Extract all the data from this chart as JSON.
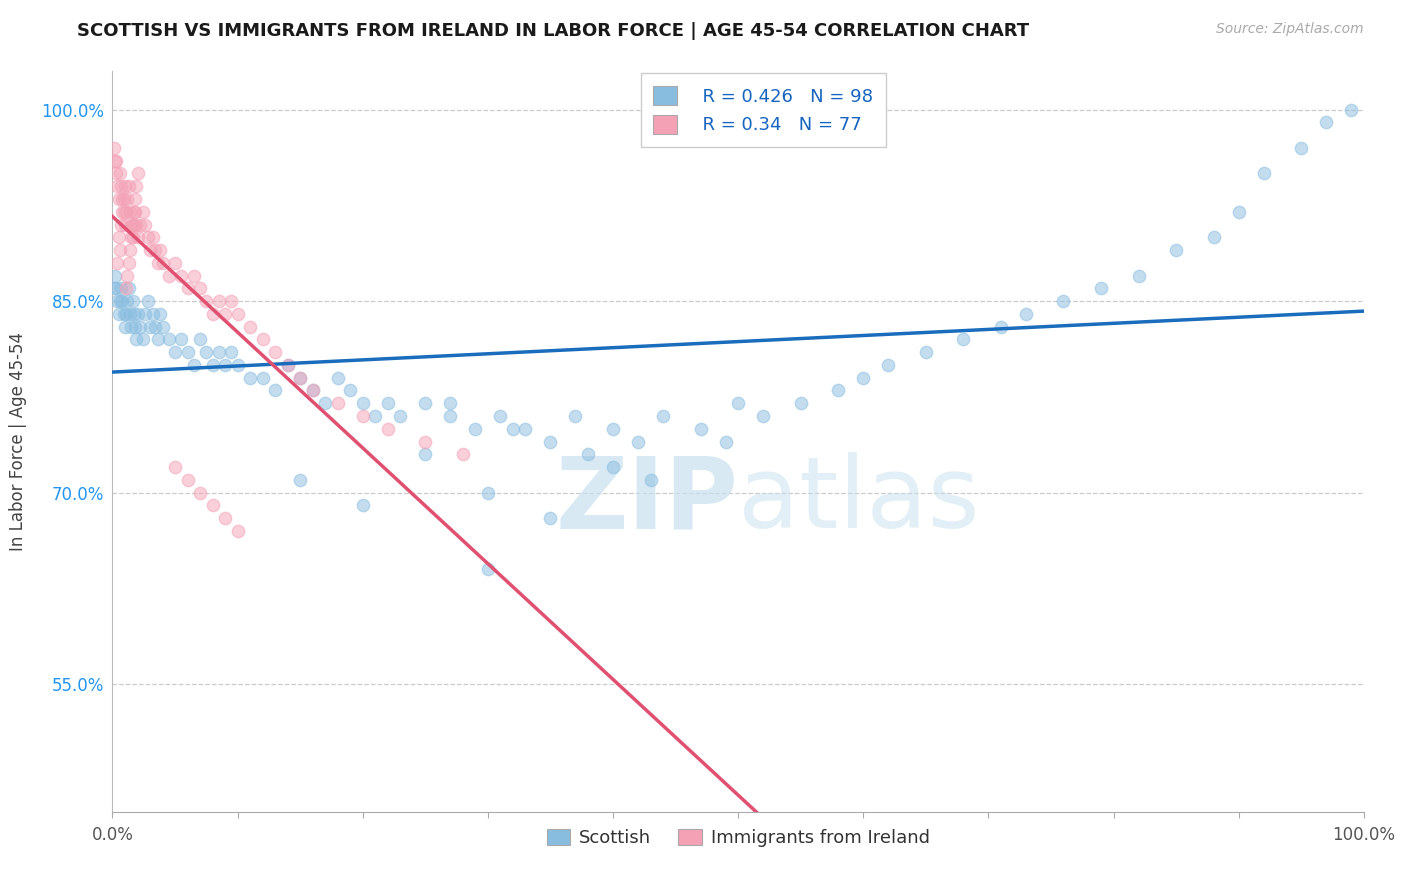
{
  "title": "SCOTTISH VS IMMIGRANTS FROM IRELAND IN LABOR FORCE | AGE 45-54 CORRELATION CHART",
  "source_text": "Source: ZipAtlas.com",
  "ylabel": "In Labor Force | Age 45-54",
  "watermark_zip": "ZIP",
  "watermark_atlas": "atlas",
  "blue_R": 0.426,
  "blue_N": 98,
  "pink_R": 0.34,
  "pink_N": 77,
  "blue_color": "#89bde0",
  "pink_color": "#f4a0b5",
  "blue_line_color": "#1a6dbd",
  "pink_line_color": "#e05070",
  "legend_blue_label": "Scottish",
  "legend_pink_label": "Immigrants from Ireland",
  "background_color": "#ffffff",
  "grid_color": "#cccccc",
  "title_color": "#1a1a1a",
  "scatter_alpha": 0.5,
  "scatter_size": 80,
  "ytick_color": "#2196F3",
  "xmin": 0.0,
  "xmax": 1.0,
  "ymin": 0.45,
  "ymax": 1.03,
  "yticks": [
    0.55,
    0.7,
    0.85,
    1.0
  ],
  "ytick_labels": [
    "55.0%",
    "70.0%",
    "85.0%",
    "100.0%"
  ],
  "blue_x": [
    0.001,
    0.002,
    0.003,
    0.004,
    0.005,
    0.006,
    0.007,
    0.008,
    0.009,
    0.01,
    0.011,
    0.012,
    0.013,
    0.014,
    0.015,
    0.016,
    0.017,
    0.018,
    0.019,
    0.02,
    0.022,
    0.024,
    0.026,
    0.028,
    0.03,
    0.032,
    0.034,
    0.036,
    0.038,
    0.04,
    0.045,
    0.05,
    0.055,
    0.06,
    0.065,
    0.07,
    0.075,
    0.08,
    0.085,
    0.09,
    0.095,
    0.1,
    0.11,
    0.12,
    0.13,
    0.14,
    0.15,
    0.16,
    0.17,
    0.18,
    0.19,
    0.2,
    0.21,
    0.22,
    0.23,
    0.25,
    0.27,
    0.29,
    0.31,
    0.33,
    0.35,
    0.37,
    0.4,
    0.42,
    0.44,
    0.47,
    0.49,
    0.52,
    0.55,
    0.58,
    0.6,
    0.62,
    0.65,
    0.68,
    0.71,
    0.73,
    0.76,
    0.79,
    0.82,
    0.85,
    0.88,
    0.9,
    0.92,
    0.95,
    0.97,
    0.99,
    0.15,
    0.2,
    0.25,
    0.3,
    0.35,
    0.4,
    0.27,
    0.32,
    0.38,
    0.43,
    0.5,
    0.3
  ],
  "blue_y": [
    0.86,
    0.87,
    0.86,
    0.85,
    0.84,
    0.85,
    0.86,
    0.85,
    0.84,
    0.83,
    0.84,
    0.85,
    0.86,
    0.84,
    0.83,
    0.85,
    0.84,
    0.83,
    0.82,
    0.84,
    0.83,
    0.82,
    0.84,
    0.85,
    0.83,
    0.84,
    0.83,
    0.82,
    0.84,
    0.83,
    0.82,
    0.81,
    0.82,
    0.81,
    0.8,
    0.82,
    0.81,
    0.8,
    0.81,
    0.8,
    0.81,
    0.8,
    0.79,
    0.79,
    0.78,
    0.8,
    0.79,
    0.78,
    0.77,
    0.79,
    0.78,
    0.77,
    0.76,
    0.77,
    0.76,
    0.77,
    0.76,
    0.75,
    0.76,
    0.75,
    0.74,
    0.76,
    0.75,
    0.74,
    0.76,
    0.75,
    0.74,
    0.76,
    0.77,
    0.78,
    0.79,
    0.8,
    0.81,
    0.82,
    0.83,
    0.84,
    0.85,
    0.86,
    0.87,
    0.89,
    0.9,
    0.92,
    0.95,
    0.97,
    0.99,
    1.0,
    0.71,
    0.69,
    0.73,
    0.7,
    0.68,
    0.72,
    0.77,
    0.75,
    0.73,
    0.71,
    0.77,
    0.64
  ],
  "pink_x": [
    0.001,
    0.002,
    0.003,
    0.004,
    0.005,
    0.006,
    0.007,
    0.008,
    0.009,
    0.01,
    0.011,
    0.012,
    0.013,
    0.014,
    0.015,
    0.016,
    0.017,
    0.018,
    0.019,
    0.02,
    0.022,
    0.024,
    0.026,
    0.028,
    0.03,
    0.032,
    0.034,
    0.036,
    0.038,
    0.04,
    0.045,
    0.05,
    0.055,
    0.06,
    0.065,
    0.07,
    0.075,
    0.08,
    0.085,
    0.09,
    0.095,
    0.1,
    0.11,
    0.12,
    0.13,
    0.14,
    0.15,
    0.16,
    0.18,
    0.2,
    0.22,
    0.25,
    0.28,
    0.05,
    0.06,
    0.07,
    0.08,
    0.09,
    0.1,
    0.003,
    0.004,
    0.005,
    0.006,
    0.007,
    0.008,
    0.009,
    0.01,
    0.011,
    0.012,
    0.013,
    0.014,
    0.015,
    0.016,
    0.017,
    0.018,
    0.019,
    0.02
  ],
  "pink_y": [
    0.97,
    0.96,
    0.95,
    0.94,
    0.93,
    0.95,
    0.94,
    0.93,
    0.92,
    0.91,
    0.92,
    0.93,
    0.94,
    0.92,
    0.91,
    0.9,
    0.91,
    0.92,
    0.91,
    0.9,
    0.91,
    0.92,
    0.91,
    0.9,
    0.89,
    0.9,
    0.89,
    0.88,
    0.89,
    0.88,
    0.87,
    0.88,
    0.87,
    0.86,
    0.87,
    0.86,
    0.85,
    0.84,
    0.85,
    0.84,
    0.85,
    0.84,
    0.83,
    0.82,
    0.81,
    0.8,
    0.79,
    0.78,
    0.77,
    0.76,
    0.75,
    0.74,
    0.73,
    0.72,
    0.71,
    0.7,
    0.69,
    0.68,
    0.67,
    0.96,
    0.88,
    0.9,
    0.89,
    0.91,
    0.92,
    0.93,
    0.94,
    0.86,
    0.87,
    0.88,
    0.89,
    0.9,
    0.91,
    0.92,
    0.93,
    0.94,
    0.95
  ]
}
